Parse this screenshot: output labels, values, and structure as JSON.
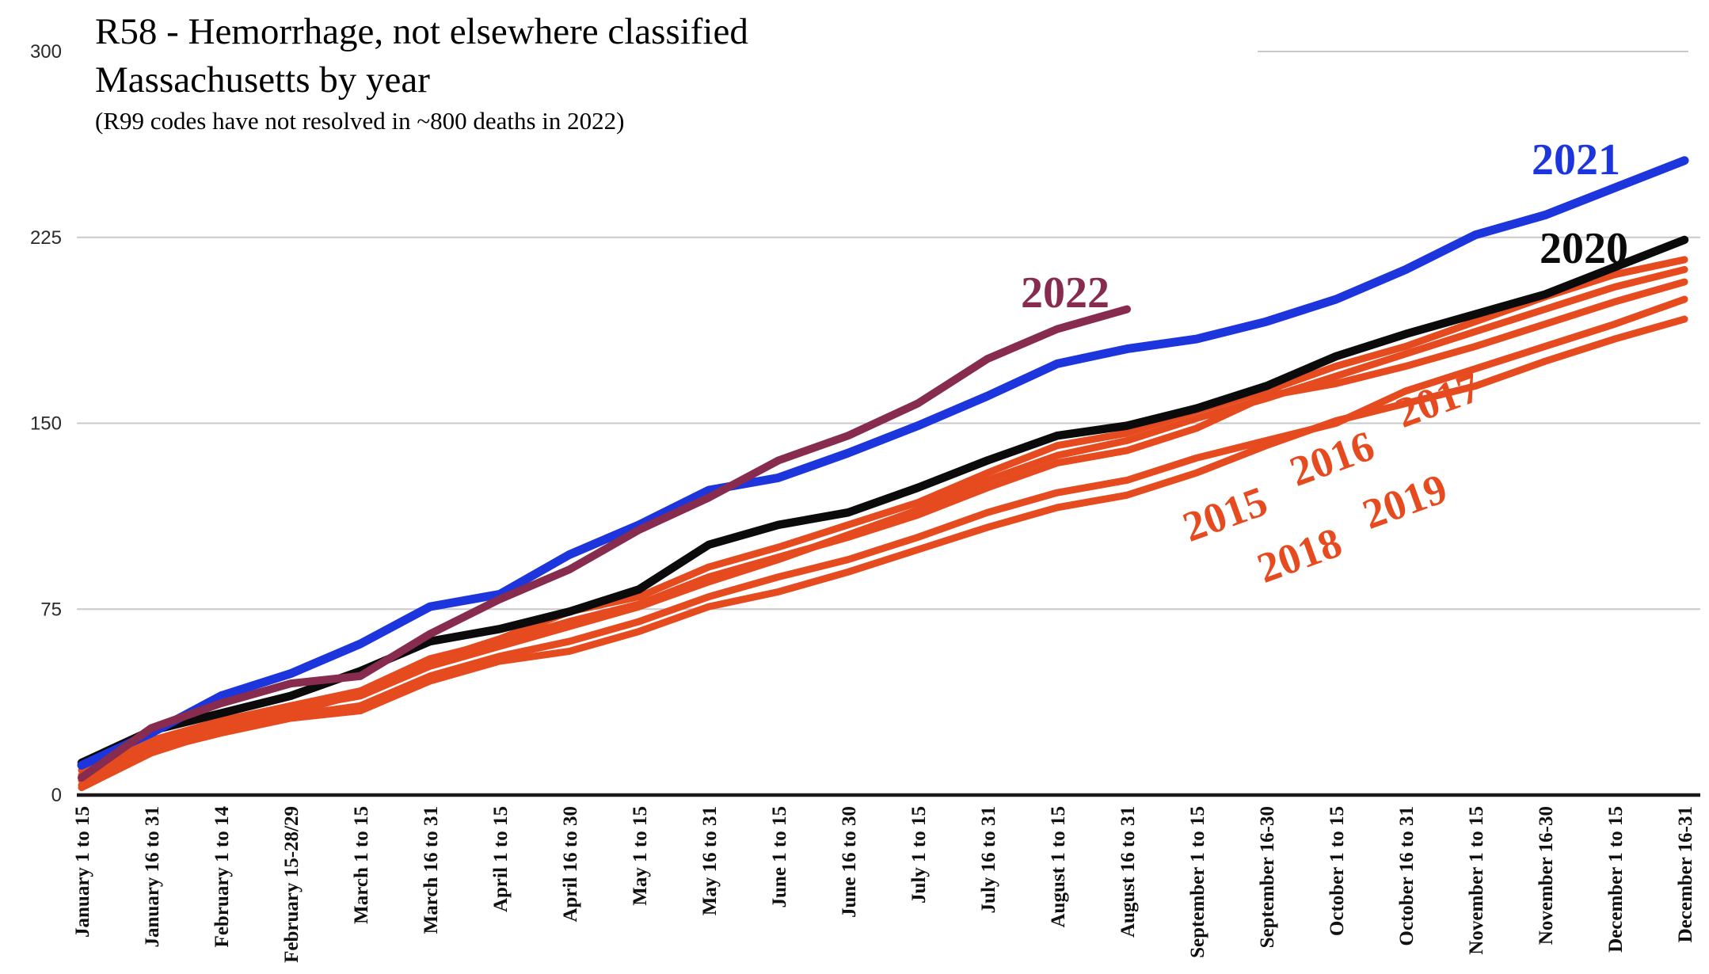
{
  "header": {
    "title_line1": "R58 - Hemorrhage, not elsewhere classified",
    "title_line2": "Massachusetts by year",
    "subtitle": "(R99 codes have not resolved in ~800 deaths in 2022)"
  },
  "chart_data": {
    "type": "line",
    "title": "R58 - Hemorrhage, not elsewhere classified Massachusetts by year",
    "subtitle": "(R99 codes have not resolved in ~800 deaths in 2022)",
    "xlabel": "",
    "ylabel": "",
    "ylim": [
      0,
      300
    ],
    "y_ticks": [
      0,
      75,
      150,
      225,
      300
    ],
    "grid": true,
    "legend_position": "inline-end-of-line-labels",
    "categories": [
      "January 1 to 15",
      "January 16 to 31",
      "February 1 to 14",
      "February 15-28/29",
      "March 1 to 15",
      "March 16 to 31",
      "April 1 to 15",
      "April 16 to 30",
      "May 1 to 15",
      "May 16 to 31",
      "June 1 to 15",
      "June 16 to 30",
      "July 1 to 15",
      "July 16 to 31",
      "August 1 to 15",
      "August 16 to 31",
      "September 1 to 15",
      "September 16-30",
      "October 1 to 15",
      "October 16 to 31",
      "November 1 to 15",
      "November 16-30",
      "December 1 to 15",
      "December 16-31"
    ],
    "series": [
      {
        "name": "2015",
        "color": "#e64a1f",
        "values": [
          10,
          22,
          30,
          36,
          42,
          55,
          62,
          70,
          77,
          88,
          96,
          104,
          113,
          124,
          134,
          139,
          148,
          161,
          166,
          173,
          181,
          190,
          199,
          207
        ]
      },
      {
        "name": "2016",
        "color": "#e64a1f",
        "values": [
          8,
          20,
          28,
          35,
          40,
          52,
          60,
          68,
          76,
          86,
          95,
          105,
          115,
          127,
          137,
          143,
          152,
          160,
          169,
          178,
          187,
          196,
          205,
          212
        ]
      },
      {
        "name": "2017",
        "color": "#e64a1f",
        "values": [
          6,
          19,
          27,
          33,
          41,
          54,
          63,
          74,
          80,
          92,
          100,
          109,
          118,
          130,
          141,
          146,
          155,
          163,
          173,
          181,
          191,
          201,
          210,
          216
        ]
      },
      {
        "name": "2018",
        "color": "#e64a1f",
        "values": [
          4,
          18,
          25,
          31,
          34,
          46,
          54,
          58,
          66,
          76,
          82,
          90,
          99,
          108,
          116,
          121,
          130,
          141,
          151,
          158,
          165,
          175,
          184,
          192
        ]
      },
      {
        "name": "2019",
        "color": "#e64a1f",
        "values": [
          3,
          17,
          26,
          32,
          36,
          48,
          56,
          62,
          70,
          80,
          88,
          95,
          104,
          114,
          122,
          127,
          136,
          143,
          150,
          163,
          172,
          181,
          190,
          200
        ]
      },
      {
        "name": "2020",
        "color": "#0b0b0b",
        "values": [
          13,
          26,
          33,
          40,
          50,
          62,
          67,
          74,
          83,
          101,
          109,
          114,
          124,
          135,
          145,
          149,
          156,
          165,
          177,
          186,
          194,
          202,
          213,
          224
        ]
      },
      {
        "name": "2021",
        "color": "#1d35dd",
        "values": [
          12,
          25,
          40,
          49,
          61,
          76,
          81,
          97,
          109,
          123,
          128,
          138,
          149,
          161,
          174,
          180,
          184,
          191,
          200,
          212,
          226,
          234,
          245,
          256
        ]
      },
      {
        "name": "2022",
        "color": "#872b4f",
        "values": [
          7,
          27,
          37,
          45,
          48,
          65,
          79,
          91,
          107,
          120,
          135,
          145,
          158,
          176,
          188,
          196
        ]
      }
    ]
  }
}
